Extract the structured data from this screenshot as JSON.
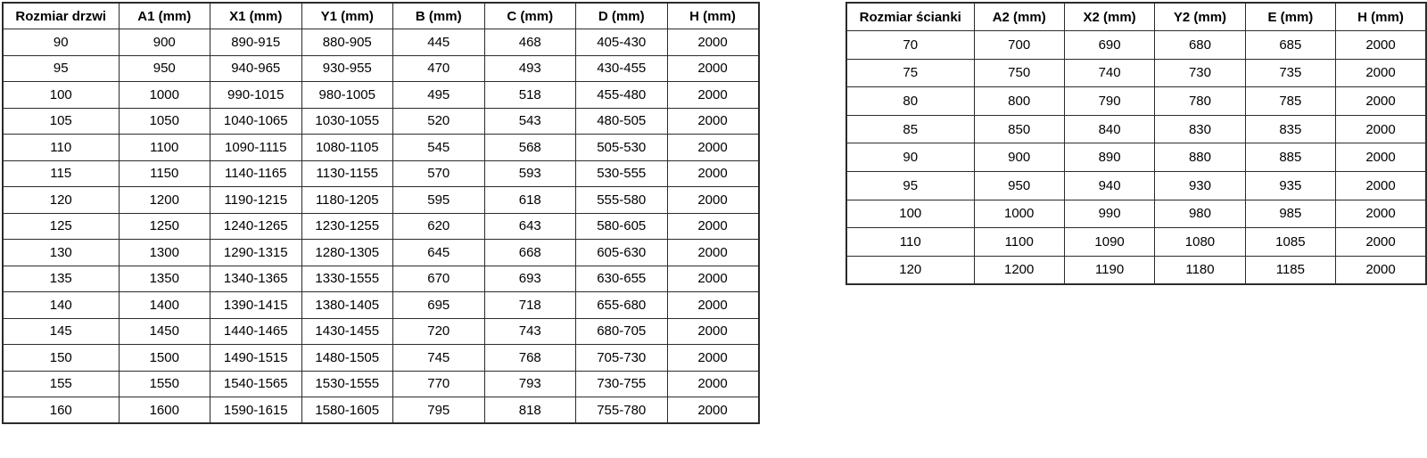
{
  "doors_table": {
    "name": "door-sizes",
    "headers": [
      "Rozmiar drzwi",
      "A1 (mm)",
      "X1 (mm)",
      "Y1 (mm)",
      "B (mm)",
      "C (mm)",
      "D (mm)",
      "H (mm)"
    ],
    "rows": [
      [
        "90",
        "900",
        "890-915",
        "880-905",
        "445",
        "468",
        "405-430",
        "2000"
      ],
      [
        "95",
        "950",
        "940-965",
        "930-955",
        "470",
        "493",
        "430-455",
        "2000"
      ],
      [
        "100",
        "1000",
        "990-1015",
        "980-1005",
        "495",
        "518",
        "455-480",
        "2000"
      ],
      [
        "105",
        "1050",
        "1040-1065",
        "1030-1055",
        "520",
        "543",
        "480-505",
        "2000"
      ],
      [
        "110",
        "1100",
        "1090-1115",
        "1080-1105",
        "545",
        "568",
        "505-530",
        "2000"
      ],
      [
        "115",
        "1150",
        "1140-1165",
        "1130-1155",
        "570",
        "593",
        "530-555",
        "2000"
      ],
      [
        "120",
        "1200",
        "1190-1215",
        "1180-1205",
        "595",
        "618",
        "555-580",
        "2000"
      ],
      [
        "125",
        "1250",
        "1240-1265",
        "1230-1255",
        "620",
        "643",
        "580-605",
        "2000"
      ],
      [
        "130",
        "1300",
        "1290-1315",
        "1280-1305",
        "645",
        "668",
        "605-630",
        "2000"
      ],
      [
        "135",
        "1350",
        "1340-1365",
        "1330-1555",
        "670",
        "693",
        "630-655",
        "2000"
      ],
      [
        "140",
        "1400",
        "1390-1415",
        "1380-1405",
        "695",
        "718",
        "655-680",
        "2000"
      ],
      [
        "145",
        "1450",
        "1440-1465",
        "1430-1455",
        "720",
        "743",
        "680-705",
        "2000"
      ],
      [
        "150",
        "1500",
        "1490-1515",
        "1480-1505",
        "745",
        "768",
        "705-730",
        "2000"
      ],
      [
        "155",
        "1550",
        "1540-1565",
        "1530-1555",
        "770",
        "793",
        "730-755",
        "2000"
      ],
      [
        "160",
        "1600",
        "1590-1615",
        "1580-1605",
        "795",
        "818",
        "755-780",
        "2000"
      ]
    ]
  },
  "walls_table": {
    "name": "wall-sizes",
    "headers": [
      "Rozmiar ścianki",
      "A2 (mm)",
      "X2 (mm)",
      "Y2 (mm)",
      "E (mm)",
      "H (mm)"
    ],
    "rows": [
      [
        "70",
        "700",
        "690",
        "680",
        "685",
        "2000"
      ],
      [
        "75",
        "750",
        "740",
        "730",
        "735",
        "2000"
      ],
      [
        "80",
        "800",
        "790",
        "780",
        "785",
        "2000"
      ],
      [
        "85",
        "850",
        "840",
        "830",
        "835",
        "2000"
      ],
      [
        "90",
        "900",
        "890",
        "880",
        "885",
        "2000"
      ],
      [
        "95",
        "950",
        "940",
        "930",
        "935",
        "2000"
      ],
      [
        "100",
        "1000",
        "990",
        "980",
        "985",
        "2000"
      ],
      [
        "110",
        "1100",
        "1090",
        "1080",
        "1085",
        "2000"
      ],
      [
        "120",
        "1200",
        "1190",
        "1180",
        "1185",
        "2000"
      ]
    ]
  },
  "colors": {
    "table_border": "#2b2b2b",
    "text": "#000000",
    "background": "#ffffff"
  }
}
